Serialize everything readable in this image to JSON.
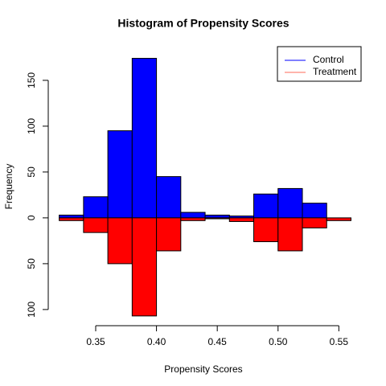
{
  "chart_data": {
    "type": "histogram",
    "title": "Histogram of Propensity Scores",
    "x_label": "Propensity Scores",
    "y_label": "Frequency",
    "bins": [
      0.32,
      0.34,
      0.36,
      0.38,
      0.4,
      0.42,
      0.44,
      0.46,
      0.48,
      0.5,
      0.52,
      0.54,
      0.56
    ],
    "series": [
      {
        "name": "Control",
        "color": "#0000ff",
        "legend_color": "#0000ff",
        "direction": "up",
        "values": [
          3,
          23,
          95,
          174,
          45,
          6,
          3,
          2,
          26,
          32,
          16,
          0
        ]
      },
      {
        "name": "Treatment",
        "color": "#ff0000",
        "legend_color": "#ff6a5a",
        "direction": "down",
        "values": [
          3,
          16,
          50,
          107,
          36,
          3,
          1,
          4,
          26,
          36,
          11,
          3
        ]
      }
    ],
    "xlim": [
      0.3,
      0.57
    ],
    "xticks": [
      0.35,
      0.4,
      0.45,
      0.5,
      0.55
    ],
    "ylim": [
      -115,
      185
    ],
    "yticks": [
      {
        "value": -100,
        "label": "100"
      },
      {
        "value": -50,
        "label": "50"
      },
      0,
      50,
      100,
      150
    ],
    "legend": "top-right",
    "grid": false
  }
}
